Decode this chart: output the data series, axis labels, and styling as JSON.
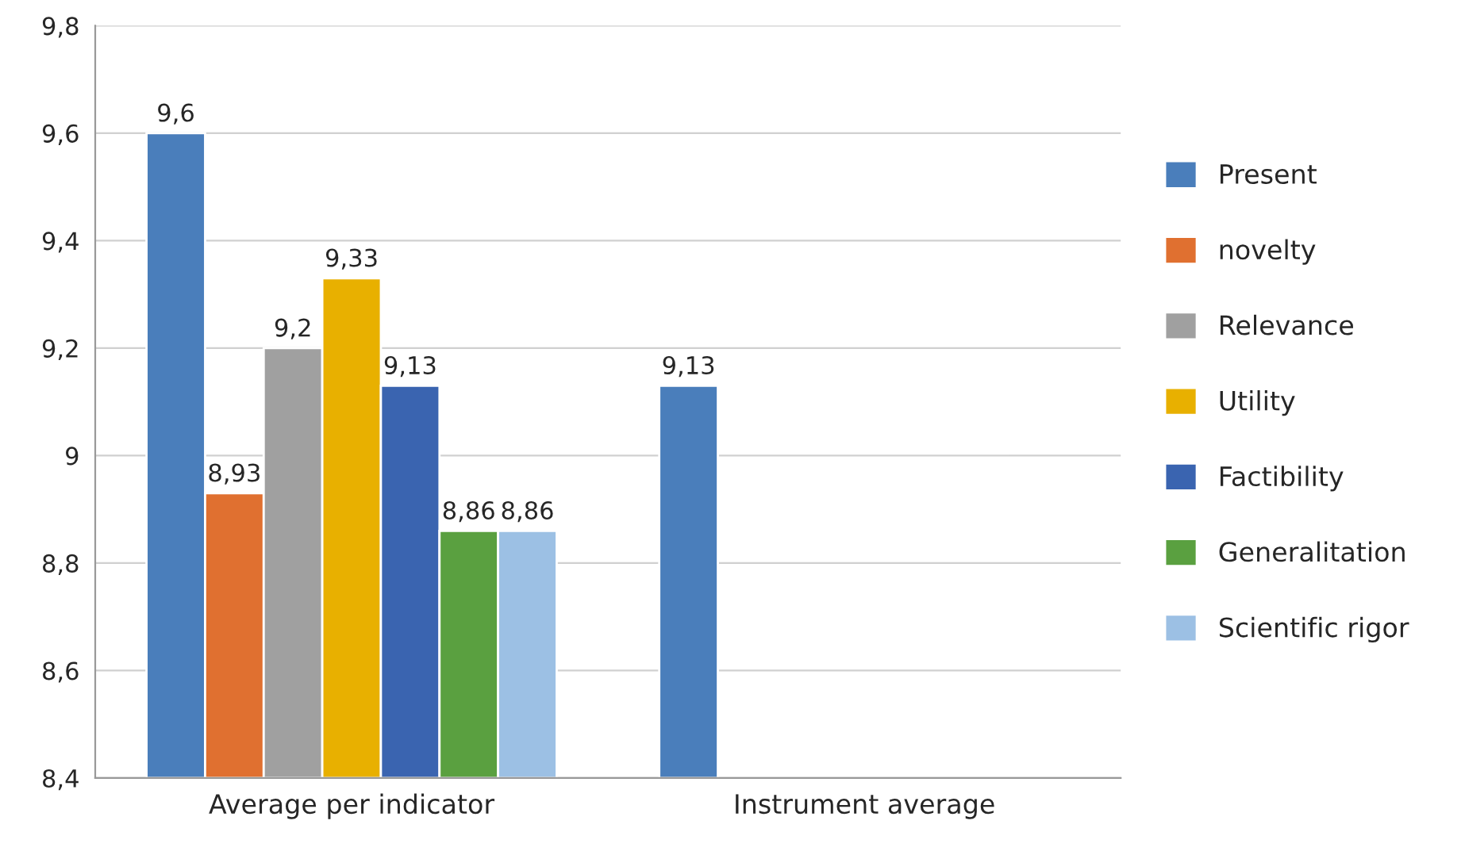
{
  "chart_data": {
    "type": "bar",
    "categories": [
      "Average per indicator",
      "Instrument average"
    ],
    "series": [
      {
        "name": "Present",
        "color": "#4a7ebb",
        "values": [
          9.6,
          9.13
        ],
        "value_labels": [
          "9,6",
          "9,13"
        ]
      },
      {
        "name": "novelty",
        "color": "#e07030",
        "values": [
          8.93,
          null
        ],
        "value_labels": [
          "8,93",
          null
        ]
      },
      {
        "name": "Relevance",
        "color": "#a0a0a0",
        "values": [
          9.2,
          null
        ],
        "value_labels": [
          "9,2",
          null
        ]
      },
      {
        "name": "Utility",
        "color": "#e8b000",
        "values": [
          9.33,
          null
        ],
        "value_labels": [
          "9,33",
          null
        ]
      },
      {
        "name": "Factibility",
        "color": "#3a64b0",
        "values": [
          9.13,
          null
        ],
        "value_labels": [
          "9,13",
          null
        ]
      },
      {
        "name": "Generalitation",
        "color": "#5aa040",
        "values": [
          8.86,
          null
        ],
        "value_labels": [
          "8,86",
          null
        ]
      },
      {
        "name": "Scientific rigor",
        "color": "#9cc0e4",
        "values": [
          8.86,
          null
        ],
        "value_labels": [
          "8,86",
          null
        ]
      }
    ],
    "ylim": [
      8.4,
      9.8
    ],
    "yticks": [
      {
        "value": 8.4,
        "label": "8,4"
      },
      {
        "value": 8.6,
        "label": "8,6"
      },
      {
        "value": 8.8,
        "label": "8,8"
      },
      9,
      {
        "value": 9.2,
        "label": "9,2"
      },
      {
        "value": 9.4,
        "label": "9,4"
      },
      {
        "value": 9.6,
        "label": "9,6"
      },
      {
        "value": 9.8,
        "label": "9,8"
      }
    ],
    "grid": "y",
    "legend": "right"
  }
}
